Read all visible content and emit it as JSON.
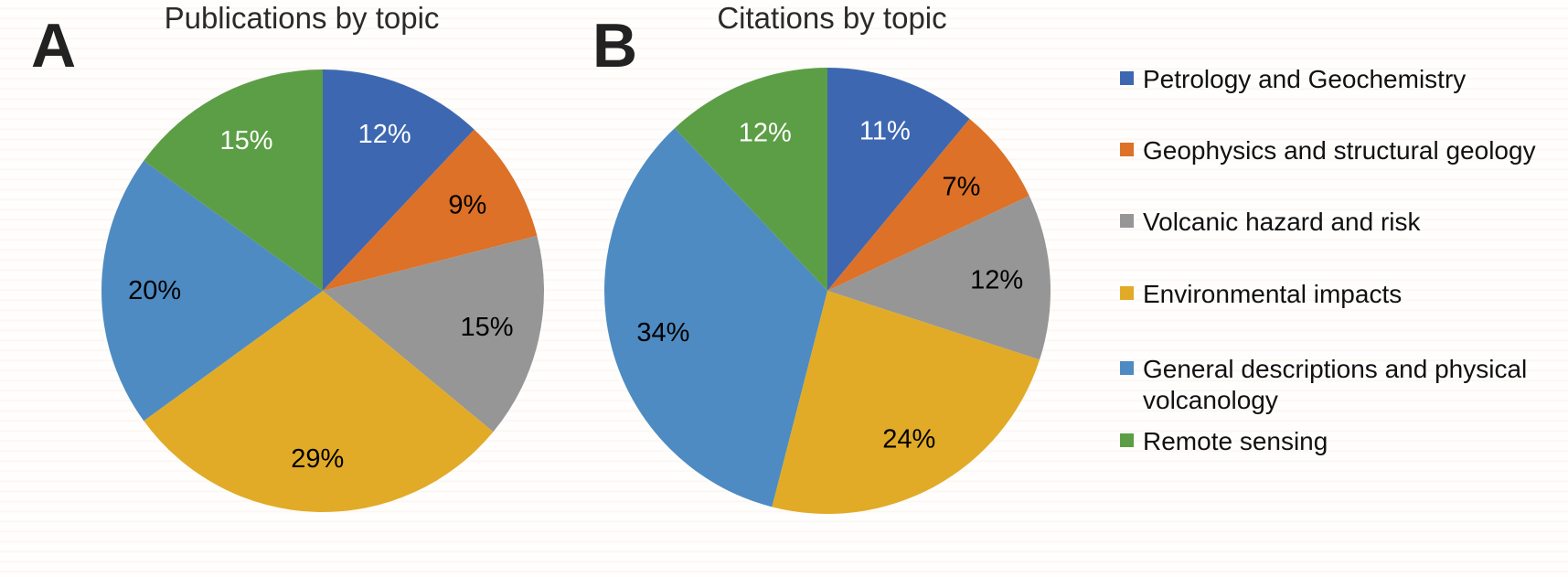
{
  "figure": {
    "background_stripe_color": "#faf4f0",
    "text_color": "#1c1c1c"
  },
  "chart_data": [
    {
      "type": "pie",
      "panel_label": "A",
      "title": "Publications by topic",
      "unit": "%",
      "start_angle_deg": 0,
      "direction": "clockwise",
      "legend_position": "right",
      "categories": [
        "Petrology and Geochemistry",
        "Geophysics and structural geology",
        "Volcanic hazard and risk",
        "Environmental impacts",
        "General descriptions and physical volcanology",
        "Remote sensing"
      ],
      "values": [
        12,
        9,
        15,
        29,
        20,
        15
      ],
      "data_labels": [
        "12%",
        "9%",
        "15%",
        "29%",
        "20%",
        "15%"
      ],
      "colors": [
        "#3d68b1",
        "#dc7127",
        "#969696",
        "#e1ab27",
        "#4e8bc2",
        "#5c9e46"
      ],
      "label_text_colors": [
        "#ffffff",
        "#000000",
        "#000000",
        "#000000",
        "#000000",
        "#ffffff"
      ]
    },
    {
      "type": "pie",
      "panel_label": "B",
      "title": "Citations by topic",
      "unit": "%",
      "start_angle_deg": 0,
      "direction": "clockwise",
      "legend_position": "right",
      "categories": [
        "Petrology and Geochemistry",
        "Geophysics and structural geology",
        "Volcanic hazard and risk",
        "Environmental impacts",
        "General descriptions and physical volcanology",
        "Remote sensing"
      ],
      "values": [
        11,
        7,
        12,
        24,
        34,
        12
      ],
      "data_labels": [
        "11%",
        "7%",
        "12%",
        "24%",
        "34%",
        "12%"
      ],
      "colors": [
        "#3d68b1",
        "#dc7127",
        "#969696",
        "#e1ab27",
        "#4e8bc2",
        "#5c9e46"
      ],
      "label_text_colors": [
        "#ffffff",
        "#000000",
        "#000000",
        "#000000",
        "#000000",
        "#ffffff"
      ]
    }
  ]
}
